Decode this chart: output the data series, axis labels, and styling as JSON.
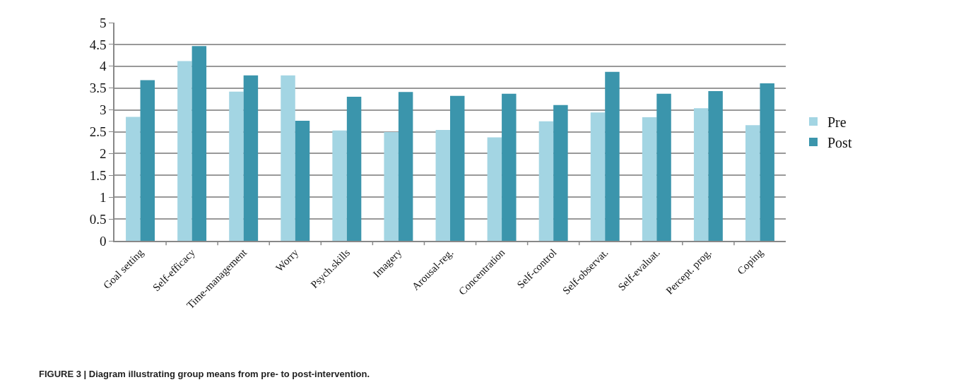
{
  "chart_data": {
    "type": "bar",
    "categories": [
      "Goal setting",
      "Self-efficacy",
      "Time-management",
      "Worry",
      "Psych.skills",
      "Imagery",
      "Arousal-reg.",
      "Concentration",
      "Self-control",
      "Self-observat.",
      "Self-evaluat.",
      "Percept. prog.",
      "Coping"
    ],
    "series": [
      {
        "name": "Pre",
        "color": "#a3d5e3",
        "values": [
          2.84,
          4.12,
          3.42,
          3.79,
          2.53,
          2.49,
          2.54,
          2.37,
          2.74,
          2.94,
          2.83,
          3.04,
          2.65
        ]
      },
      {
        "name": "Post",
        "color": "#3b95ac",
        "values": [
          3.68,
          4.46,
          3.79,
          2.75,
          3.3,
          3.41,
          3.32,
          3.37,
          3.11,
          3.87,
          3.37,
          3.43,
          3.61
        ]
      }
    ],
    "ylim": [
      0,
      5
    ],
    "yticks": [
      0,
      0.5,
      1,
      1.5,
      2,
      2.5,
      3,
      3.5,
      4,
      4.5,
      5
    ],
    "grid": "y",
    "legend": "right",
    "annotations": [
      "FIGURE 3 | Diagram illustrating group means from pre- to post-intervention."
    ]
  }
}
